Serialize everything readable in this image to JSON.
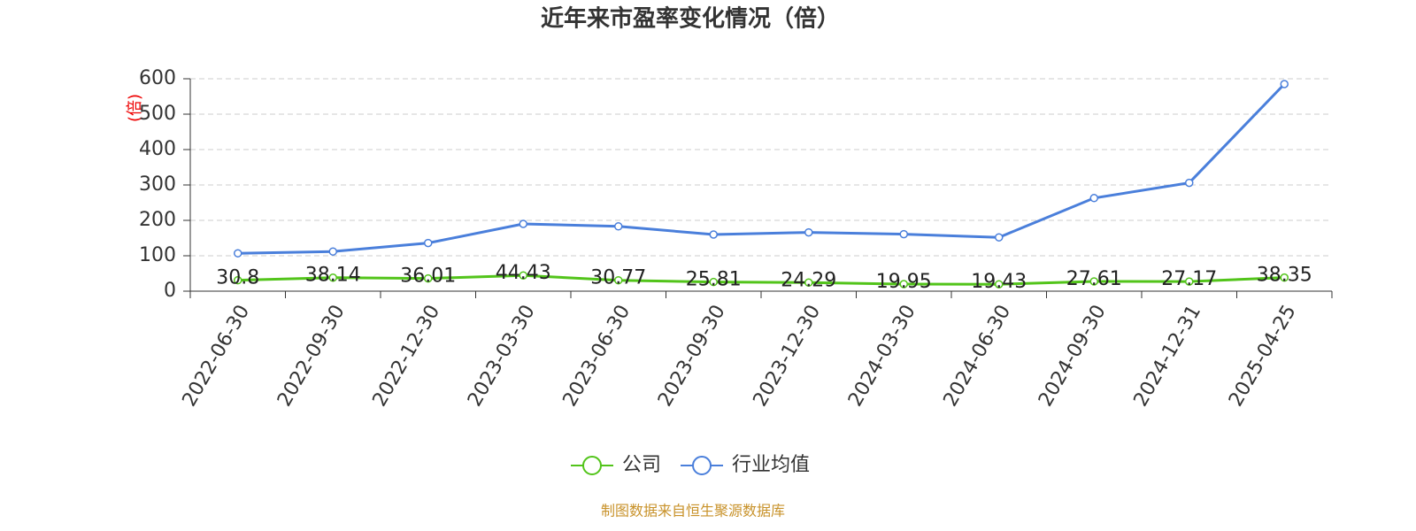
{
  "chart_data": {
    "type": "line",
    "title": "近年来市盈率变化情况（倍）",
    "y_label": "(倍)",
    "categories": [
      "2022-06-30",
      "2022-09-30",
      "2022-12-30",
      "2023-03-30",
      "2023-06-30",
      "2023-09-30",
      "2023-12-30",
      "2024-03-30",
      "2024-06-30",
      "2024-09-30",
      "2024-12-31",
      "2025-04-25"
    ],
    "series": [
      {
        "name": "公司",
        "color": "#52c41a",
        "values": [
          30.8,
          38.14,
          36.01,
          44.43,
          30.77,
          25.81,
          24.29,
          19.95,
          19.43,
          27.61,
          27.17,
          38.35
        ],
        "data_labels": true
      },
      {
        "name": "行业均值",
        "color": "#4a7fdb",
        "values": [
          107,
          112,
          136,
          190,
          183,
          160,
          166,
          161,
          152,
          263,
          306,
          585
        ],
        "data_labels": false
      }
    ],
    "ylim": [
      0,
      600
    ],
    "yticks": [
      0,
      100,
      200,
      300,
      400,
      500,
      600
    ],
    "grid": true,
    "legend": "bottom",
    "source": "制图数据来自恒生聚源数据库"
  }
}
